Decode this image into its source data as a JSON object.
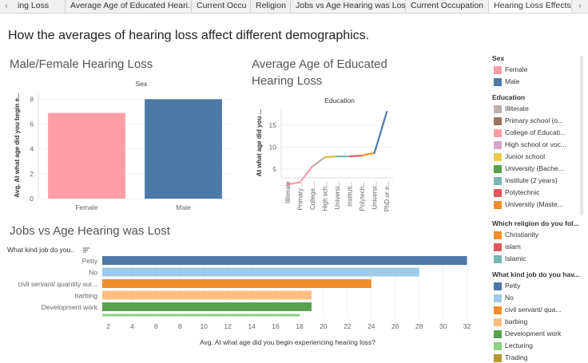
{
  "tabs": [
    {
      "label": "ing Loss",
      "active": false
    },
    {
      "label": "Average Age of Educated Heari...",
      "active": false
    },
    {
      "label": "Current Occu",
      "active": false
    },
    {
      "label": "Religion",
      "active": false
    },
    {
      "label": "Jobs vs Age Hearing was Lost",
      "active": false
    },
    {
      "label": "Current Occupation",
      "active": false
    },
    {
      "label": "Hearing Loss Effects",
      "active": true
    }
  ],
  "nav": {
    "prev": "‹",
    "next": "›"
  },
  "dashboard_title": "How the averages of hearing loss affect different demographics.",
  "sheets": {
    "sex_title": "Male/Female Hearing Loss",
    "edu_title_line1": "Average Age of Educated",
    "edu_title_line2": "Hearing Loss",
    "jobs_title": "Jobs vs Age Hearing was Lost"
  },
  "chart_data": [
    {
      "type": "bar",
      "title": "Male/Female Hearing Loss",
      "header": "Sex",
      "ylabel": "Avg. At what age did you begin e...",
      "categories": [
        "Female",
        "Male"
      ],
      "values": [
        6.9,
        8.0
      ],
      "colors": [
        "#ff9da7",
        "#4e79a7"
      ],
      "ylim": [
        0,
        8.6
      ],
      "yticks": [
        0,
        2,
        4,
        6,
        8
      ]
    },
    {
      "type": "line",
      "title": "Average Age of Educated Hearing Loss",
      "header": "Education",
      "ylabel": "At what age did you ...",
      "categories": [
        "Illiterate",
        "Primary ...",
        "College ...",
        "High sch...",
        "Universi...",
        "Instituti...",
        "Polytech...",
        "Universi...",
        "PhD or e..."
      ],
      "values": [
        1.5,
        2.0,
        5.6,
        7.7,
        7.9,
        7.9,
        8.1,
        8.7,
        18.1
      ],
      "segment_colors": [
        "#d4a6c8",
        "#ff9da7",
        "#ff9da7",
        "#bab0ac",
        "#d4c13e",
        "#76b7b2",
        "#e15759",
        "#f28e2b",
        "#4e79a7"
      ],
      "ylim": [
        3,
        19
      ],
      "yticks": [
        5,
        10,
        15
      ]
    },
    {
      "type": "bar",
      "orientation": "horizontal",
      "title": "Jobs vs Age Hearing was Lost",
      "header": "What kind job do you..",
      "xlabel": "Avg. At what age did you begin experiencing hearing loss?",
      "categories": [
        "Petty",
        "No",
        "civil servant/ quantity sur...",
        "barbing",
        "Development work",
        "Lecturing"
      ],
      "values": [
        32,
        28,
        24,
        19,
        19,
        18
      ],
      "colors": [
        "#4e79a7",
        "#a0cbe8",
        "#f28e2b",
        "#ffbe7d",
        "#59a14f",
        "#8cd17d"
      ],
      "xlim": [
        1.5,
        32.5
      ],
      "xticks": [
        2,
        4,
        6,
        8,
        10,
        12,
        14,
        16,
        18,
        20,
        22,
        24,
        26,
        28,
        30,
        32
      ]
    }
  ],
  "legends": [
    {
      "title": "Sex",
      "items": [
        {
          "label": "Female",
          "color": "#ff9da7"
        },
        {
          "label": "Male",
          "color": "#4e79a7"
        }
      ]
    },
    {
      "title": "Education",
      "items": [
        {
          "label": "Illiterate",
          "color": "#bab0ac"
        },
        {
          "label": "Primary school (o...",
          "color": "#9c755f"
        },
        {
          "label": "College of Educati...",
          "color": "#ff9da7"
        },
        {
          "label": "High school or voc...",
          "color": "#d4a6c8"
        },
        {
          "label": "Junior school",
          "color": "#edc948"
        },
        {
          "label": "University (Bache...",
          "color": "#59a14f"
        },
        {
          "label": "Institute (2 years)",
          "color": "#76b7b2"
        },
        {
          "label": "Polytechnic",
          "color": "#e15759"
        },
        {
          "label": "University (Maste...",
          "color": "#f28e2b"
        }
      ]
    },
    {
      "title": "Which religion do you fol...",
      "items": [
        {
          "label": "Christianity",
          "color": "#f28e2b"
        },
        {
          "label": "islam",
          "color": "#e15759"
        },
        {
          "label": "Islamic",
          "color": "#76b7b2"
        }
      ]
    },
    {
      "title": "What kind job do you hav...",
      "items": [
        {
          "label": "Petty",
          "color": "#4e79a7"
        },
        {
          "label": "No",
          "color": "#a0cbe8"
        },
        {
          "label": "civil servant/ qua...",
          "color": "#f28e2b"
        },
        {
          "label": "barbing",
          "color": "#ffbe7d"
        },
        {
          "label": "Development work",
          "color": "#59a14f"
        },
        {
          "label": "Lecturing",
          "color": "#8cd17d"
        },
        {
          "label": "Trading",
          "color": "#b6992d"
        }
      ]
    }
  ],
  "sort_icon": "sort-descending-icon"
}
